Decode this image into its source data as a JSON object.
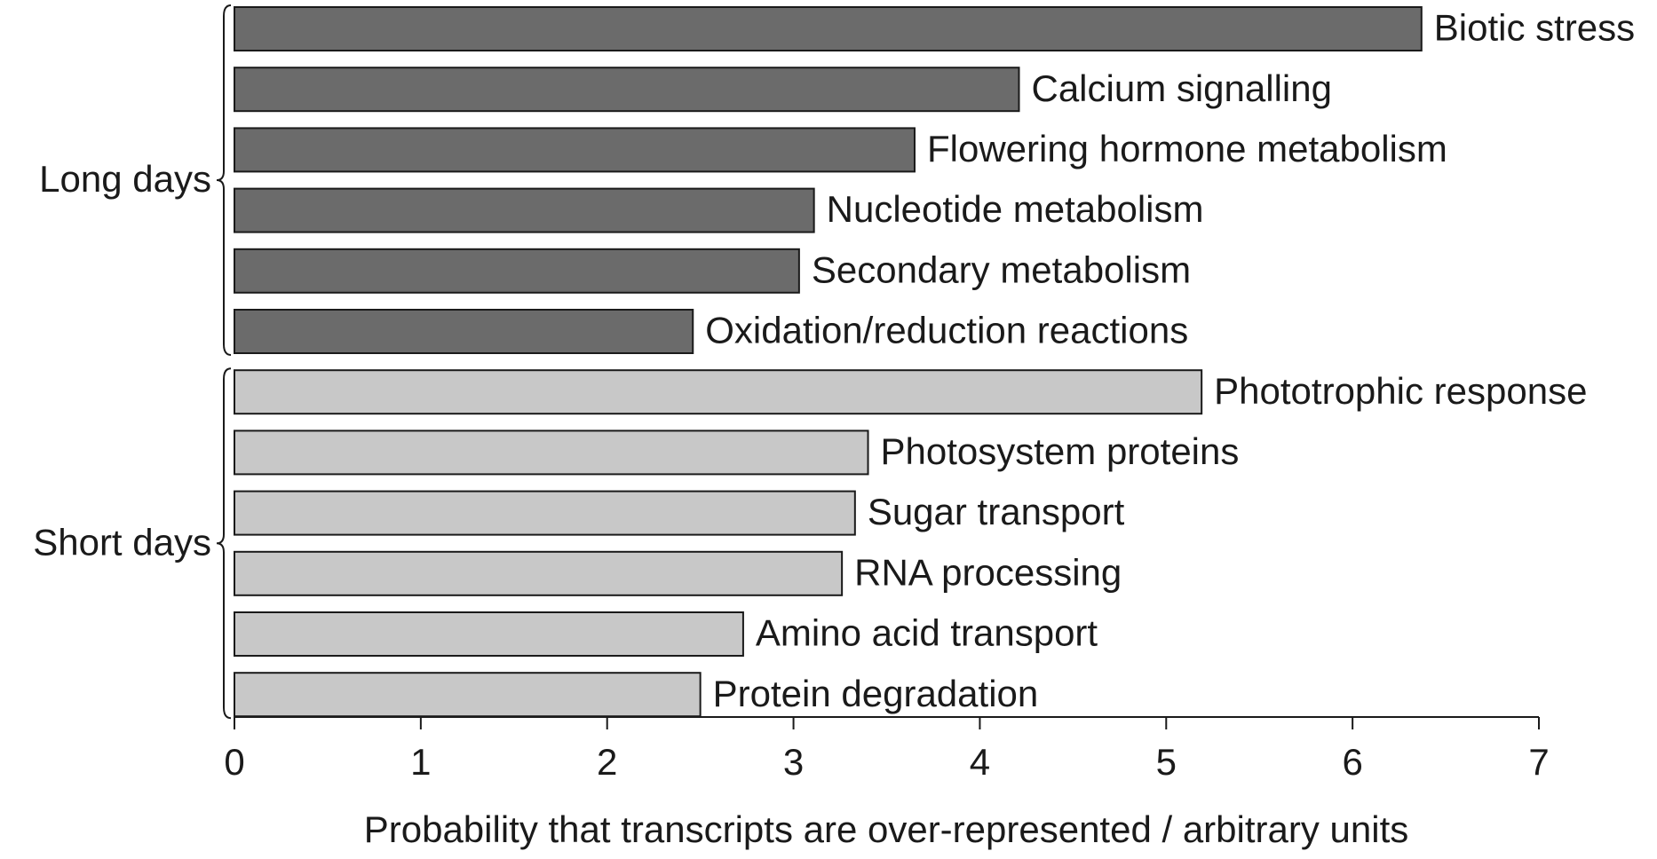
{
  "chart_data": {
    "type": "hbar",
    "xlabel": "Probability that transcripts are over-represented / arbitrary units",
    "xlim": [
      0,
      7
    ],
    "xticks": [
      0,
      1,
      2,
      3,
      4,
      5,
      6,
      7
    ],
    "groups": [
      {
        "name": "Long days",
        "color": "#6b6b6b",
        "categories": [
          "Biotic stress",
          "Calcium signalling",
          "Flowering hormone metabolism",
          "Nucleotide metabolism",
          "Secondary metabolism",
          "Oxidation/reduction reactions"
        ],
        "values": [
          6.37,
          4.21,
          3.65,
          3.11,
          3.03,
          2.46
        ]
      },
      {
        "name": "Short days",
        "color": "#c8c8c8",
        "categories": [
          "Phototrophic response",
          "Photosystem proteins",
          "Sugar transport",
          "RNA processing",
          "Amino acid transport",
          "Protein degradation"
        ],
        "values": [
          5.19,
          3.4,
          3.33,
          3.26,
          2.73,
          2.5
        ]
      }
    ]
  }
}
